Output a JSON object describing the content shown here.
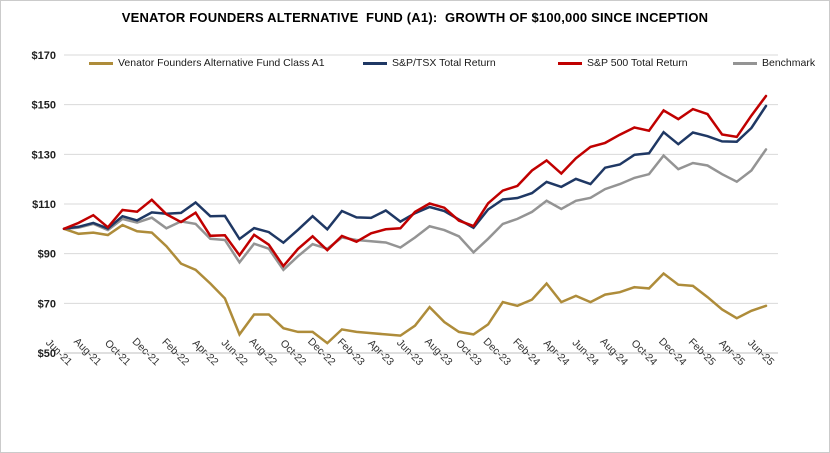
{
  "title": "VENATOR FOUNDERS ALTERNATIVE  FUND (A1):  GROWTH OF $100,000 SINCE INCEPTION",
  "colors": {
    "gridline": "#D9D9D9",
    "axis": "#BFBFBF",
    "background": "#FFFFFF"
  },
  "chart_data": {
    "type": "line",
    "title": "VENATOR FOUNDERS ALTERNATIVE FUND (A1): GROWTH OF $100,000 SINCE INCEPTION",
    "legend_position": "top",
    "grid": true,
    "ylim": [
      50,
      170
    ],
    "yticks": [
      50,
      70,
      90,
      110,
      130,
      150,
      170
    ],
    "ytick_labels": [
      "$50",
      "$70",
      "$90",
      "$110",
      "$130",
      "$150",
      "$170"
    ],
    "x_tick_labels": [
      "Jun-21",
      "Aug-21",
      "Oct-21",
      "Dec-21",
      "Feb-22",
      "Apr-22",
      "Jun-22",
      "Aug-22",
      "Oct-22",
      "Dec-22",
      "Feb-23",
      "Apr-23",
      "Jun-23",
      "Aug-23",
      "Oct-23",
      "Dec-23",
      "Feb-24",
      "Apr-24",
      "Jun-24",
      "Aug-24",
      "Oct-24",
      "Dec-24",
      "Feb-25",
      "Apr-25",
      "Jun-25"
    ],
    "x": [
      "Jun-21",
      "Jul-21",
      "Aug-21",
      "Sep-21",
      "Oct-21",
      "Nov-21",
      "Dec-21",
      "Jan-22",
      "Feb-22",
      "Mar-22",
      "Apr-22",
      "May-22",
      "Jun-22",
      "Jul-22",
      "Aug-22",
      "Sep-22",
      "Oct-22",
      "Nov-22",
      "Dec-22",
      "Jan-23",
      "Feb-23",
      "Mar-23",
      "Apr-23",
      "May-23",
      "Jun-23",
      "Jul-23",
      "Aug-23",
      "Sep-23",
      "Oct-23",
      "Nov-23",
      "Dec-23",
      "Jan-24",
      "Feb-24",
      "Mar-24",
      "Apr-24",
      "May-24",
      "Jun-24",
      "Jul-24",
      "Aug-24",
      "Sep-24",
      "Oct-24",
      "Nov-24",
      "Dec-24",
      "Jan-25",
      "Feb-25",
      "Mar-25",
      "Apr-25",
      "May-25",
      "Jun-25"
    ],
    "series": [
      {
        "name": "Venator Founders Alternative Fund Class A1",
        "color": "#AE8C3A",
        "values": [
          100,
          98,
          98.5,
          97.5,
          101.5,
          99,
          98.5,
          93,
          86,
          83.5,
          78,
          72,
          57.5,
          65.5,
          65.5,
          60,
          58.5,
          58.5,
          54,
          59.5,
          58.5,
          58,
          57.5,
          57,
          61,
          68.5,
          62.5,
          58.5,
          57.5,
          61.5,
          70.5,
          69,
          71.5,
          78,
          70.5,
          73,
          70.5,
          73.5,
          74.5,
          76.5,
          76,
          82,
          77.5,
          77,
          72.5,
          67.5,
          64,
          67,
          69
        ]
      },
      {
        "name": "S&P/TSX Total Return",
        "color": "#1F3864",
        "values": [
          100,
          100.8,
          102.4,
          100.1,
          105.1,
          103.4,
          106.6,
          106.1,
          106.4,
          110.6,
          105.1,
          105.2,
          95.9,
          100.3,
          98.7,
          94.4,
          99.6,
          105.1,
          99.8,
          107.2,
          104.6,
          104.4,
          107.4,
          102.9,
          106.3,
          108.8,
          107.2,
          103.7,
          100.4,
          107.8,
          111.8,
          112.4,
          114.4,
          118.9,
          116.9,
          120.1,
          118,
          124.6,
          125.9,
          129.8,
          130.4,
          138.9,
          134.1,
          138.8,
          137.3,
          135.2,
          135.1,
          140.6,
          149.5
        ]
      },
      {
        "name": "S&P 500 Total Return",
        "color": "#C00000",
        "values": [
          100,
          102.4,
          105.5,
          100.6,
          107.6,
          106.9,
          111.7,
          105.9,
          102.7,
          106.5,
          97.2,
          97.4,
          89.4,
          97.6,
          93.6,
          85,
          91.9,
          97,
          91.4,
          97.1,
          94.8,
          98.2,
          99.8,
          100.2,
          106.8,
          110.2,
          108.5,
          103.3,
          101.1,
          110.3,
          115.4,
          117.3,
          123.5,
          127.5,
          122.3,
          128.4,
          133,
          134.6,
          137.9,
          140.8,
          139.5,
          147.7,
          144.2,
          148.2,
          146.2,
          138,
          137,
          145.6,
          153.5
        ]
      },
      {
        "name": "Benchmark",
        "color": "#949494",
        "values": [
          100,
          100.5,
          102,
          99.5,
          104,
          102.5,
          104.5,
          100.2,
          103,
          102,
          96,
          95.5,
          86.5,
          94,
          92,
          83.5,
          89,
          93.8,
          92,
          96.5,
          95.5,
          95,
          94.5,
          92.5,
          96.5,
          101,
          99.5,
          97,
          90.5,
          96,
          102,
          104,
          106.8,
          111.3,
          108,
          111.3,
          112.5,
          116,
          118,
          120.5,
          122,
          129.5,
          124,
          126.5,
          125.5,
          122,
          119,
          123.5,
          132
        ]
      }
    ]
  }
}
